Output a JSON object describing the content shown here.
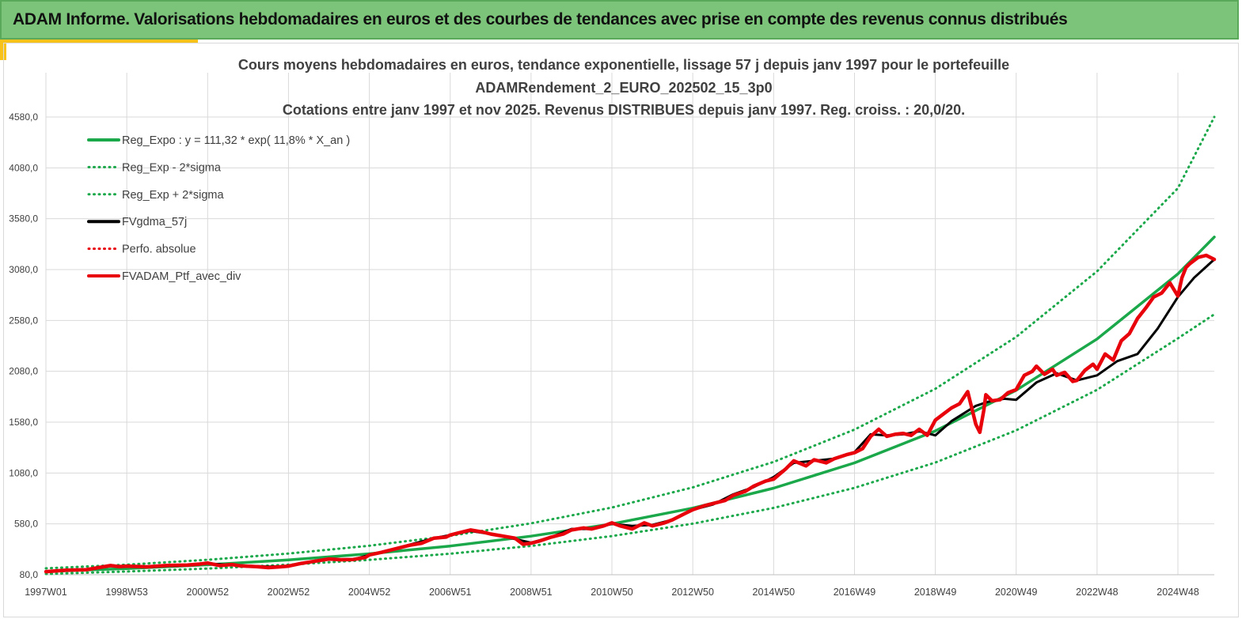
{
  "banner": {
    "title": "ADAM Informe. Valorisations hebdomadaires en euros et des courbes de tendances avec prise en compte des revenus connus distribués"
  },
  "colors": {
    "banner_bg": "#7cc47a",
    "accent": "#f7c21a",
    "trend": "#1aa84a",
    "gdma": "#000000",
    "portfolio": "#e8000b"
  },
  "chart_data": {
    "type": "line",
    "title_lines": [
      "Cours moyens hebdomadaires  en euros, tendance exponentielle, lissage 57 j depuis janv 1997 pour le portefeuille",
      "ADAMRendement_2_EURO_202502_15_3p0",
      "Cotations  entre janv 1997 et nov  2025. Revenus DISTRIBUES depuis janv 1997. Reg. croiss. : 20,0/20."
    ],
    "xlabel": "",
    "ylabel": "",
    "x_range": [
      1997.0,
      2025.9
    ],
    "ylim": [
      80,
      4580
    ],
    "y_ticks": [
      {
        "value": 80,
        "label": "80,0"
      },
      {
        "value": 580,
        "label": "580,0"
      },
      {
        "value": 1080,
        "label": "1080,0"
      },
      {
        "value": 1580,
        "label": "1580,0"
      },
      {
        "value": 2080,
        "label": "2080,0"
      },
      {
        "value": 2580,
        "label": "2580,0"
      },
      {
        "value": 3080,
        "label": "3080,0"
      },
      {
        "value": 3580,
        "label": "3580,0"
      },
      {
        "value": 4080,
        "label": "4080,0"
      },
      {
        "value": 4580,
        "label": "4580,0"
      }
    ],
    "x_ticks": [
      {
        "value": 1997.0,
        "label": "1997W01"
      },
      {
        "value": 1999.0,
        "label": "1998W53"
      },
      {
        "value": 2001.0,
        "label": "2000W52"
      },
      {
        "value": 2003.0,
        "label": "2002W52"
      },
      {
        "value": 2005.0,
        "label": "2004W52"
      },
      {
        "value": 2007.0,
        "label": "2006W51"
      },
      {
        "value": 2009.0,
        "label": "2008W51"
      },
      {
        "value": 2011.0,
        "label": "2010W50"
      },
      {
        "value": 2013.0,
        "label": "2012W50"
      },
      {
        "value": 2015.0,
        "label": "2014W50"
      },
      {
        "value": 2017.0,
        "label": "2016W49"
      },
      {
        "value": 2019.0,
        "label": "2018W49"
      },
      {
        "value": 2021.0,
        "label": "2020W49"
      },
      {
        "value": 2023.0,
        "label": "2022W48"
      },
      {
        "value": 2025.0,
        "label": "2024W48"
      }
    ],
    "grid": true,
    "legend_position": "top-left",
    "series": [
      {
        "name": "Reg_Expo : y = 111,32 * exp( 11,8% *  X_an )",
        "style": "solid",
        "color": "#1aa84a",
        "x": [
          1997,
          1999,
          2001,
          2003,
          2005,
          2007,
          2009,
          2011,
          2013,
          2015,
          2017,
          2019,
          2021,
          2023,
          2025,
          2025.9
        ],
        "y": [
          112,
          141,
          178,
          226,
          286,
          362,
          459,
          580,
          735,
          931,
          1180,
          1494,
          1893,
          2398,
          3037,
          3400
        ]
      },
      {
        "name": "Reg_Exp - 2*sigma",
        "style": "dotted",
        "color": "#1aa84a",
        "x": [
          1997,
          1999,
          2001,
          2003,
          2005,
          2007,
          2009,
          2011,
          2013,
          2015,
          2017,
          2019,
          2021,
          2023,
          2025,
          2025.9
        ],
        "y": [
          88,
          112,
          141,
          179,
          226,
          287,
          363,
          460,
          582,
          737,
          934,
          1183,
          1499,
          1898,
          2404,
          2640
        ]
      },
      {
        "name": "Reg_Exp + 2*sigma",
        "style": "dotted",
        "color": "#1aa84a",
        "x": [
          1997,
          1999,
          2001,
          2003,
          2005,
          2007,
          2009,
          2011,
          2013,
          2015,
          2017,
          2019,
          2021,
          2023,
          2025,
          2025.9
        ],
        "y": [
          143,
          179,
          227,
          288,
          365,
          462,
          585,
          741,
          939,
          1189,
          1507,
          1908,
          2418,
          3063,
          3880,
          4580
        ]
      },
      {
        "name": "FVgdma_57j",
        "style": "solid",
        "color": "#000000",
        "x": [
          1997.0,
          1998.0,
          1998.6,
          1999.5,
          2000.5,
          2001.0,
          2001.6,
          2002.5,
          2003.0,
          2003.6,
          2004.0,
          2004.6,
          2005.0,
          2005.6,
          2006.0,
          2006.6,
          2007.0,
          2007.5,
          2008.0,
          2008.5,
          2009.0,
          2009.5,
          2010.0,
          2010.5,
          2011.0,
          2011.5,
          2012.0,
          2012.5,
          2013.0,
          2013.5,
          2014.0,
          2014.5,
          2015.0,
          2015.5,
          2016.0,
          2016.5,
          2017.0,
          2017.4,
          2017.8,
          2018.2,
          2018.6,
          2019.0,
          2019.4,
          2019.8,
          2020.0,
          2020.3,
          2020.7,
          2021.0,
          2021.5,
          2022.0,
          2022.5,
          2023.0,
          2023.5,
          2024.0,
          2024.5,
          2025.0,
          2025.4,
          2025.9
        ],
        "y": [
          110,
          130,
          165,
          160,
          170,
          190,
          175,
          160,
          165,
          210,
          230,
          230,
          275,
          330,
          375,
          440,
          470,
          510,
          480,
          440,
          395,
          450,
          530,
          530,
          580,
          560,
          570,
          620,
          720,
          770,
          870,
          940,
          1040,
          1180,
          1200,
          1220,
          1285,
          1460,
          1450,
          1460,
          1490,
          1450,
          1590,
          1690,
          1740,
          1780,
          1810,
          1800,
          1970,
          2060,
          1990,
          2040,
          2180,
          2250,
          2500,
          2810,
          3000,
          3180
        ]
      },
      {
        "name": "Perfo. absolue",
        "style": "dotted",
        "color": "#e8000b",
        "x": [
          1997.0,
          1998.0,
          1998.6,
          1999.5,
          2000.5,
          2001.0,
          2001.6,
          2002.5,
          2003.0,
          2003.6,
          2004.0,
          2004.6,
          2005.0,
          2005.6,
          2006.0,
          2006.6,
          2007.0,
          2007.5,
          2008.0,
          2008.5,
          2009.0,
          2009.5,
          2010.0,
          2010.5,
          2011.0,
          2011.5,
          2012.0,
          2012.5,
          2013.0,
          2013.5,
          2014.0,
          2014.5,
          2015.0,
          2015.5,
          2016.0,
          2016.5,
          2017.0,
          2017.4,
          2017.8,
          2018.2,
          2018.6,
          2019.0,
          2019.4,
          2019.8,
          2020.0,
          2020.3,
          2020.7,
          2021.0,
          2021.5,
          2022.0,
          2022.5,
          2023.0,
          2023.5,
          2024.0,
          2024.5,
          2025.0,
          2025.4,
          2025.9
        ],
        "y": [
          110,
          130,
          165,
          160,
          170,
          190,
          175,
          160,
          165,
          210,
          230,
          230,
          275,
          330,
          375,
          440,
          470,
          510,
          480,
          440,
          395,
          450,
          530,
          530,
          580,
          560,
          570,
          620,
          720,
          770,
          870,
          940,
          1040,
          1180,
          1200,
          1220,
          1285,
          1460,
          1450,
          1460,
          1490,
          1450,
          1590,
          1690,
          1740,
          1780,
          1810,
          1800,
          1970,
          2060,
          1990,
          2040,
          2180,
          2250,
          2500,
          2810,
          3000,
          3180
        ]
      },
      {
        "name": "FVADAM_Ptf_avec_div",
        "style": "solid",
        "color": "#e8000b",
        "x": [
          1997.0,
          1997.5,
          1998.0,
          1998.3,
          1998.6,
          1998.8,
          1999.0,
          1999.5,
          2000.0,
          2000.5,
          2000.8,
          2001.0,
          2001.3,
          2001.6,
          2001.8,
          2002.2,
          2002.5,
          2002.8,
          2003.0,
          2003.3,
          2003.6,
          2004.0,
          2004.3,
          2004.6,
          2004.9,
          2005.0,
          2005.3,
          2005.6,
          2006.0,
          2006.3,
          2006.6,
          2006.9,
          2007.0,
          2007.2,
          2007.5,
          2007.8,
          2008.0,
          2008.3,
          2008.6,
          2008.8,
          2009.0,
          2009.2,
          2009.5,
          2009.8,
          2010.0,
          2010.3,
          2010.5,
          2010.8,
          2011.0,
          2011.2,
          2011.5,
          2011.8,
          2012.0,
          2012.3,
          2012.5,
          2012.8,
          2013.0,
          2013.3,
          2013.5,
          2013.8,
          2014.0,
          2014.3,
          2014.5,
          2014.8,
          2015.0,
          2015.3,
          2015.5,
          2015.8,
          2016.0,
          2016.3,
          2016.5,
          2016.8,
          2017.0,
          2017.2,
          2017.4,
          2017.6,
          2017.8,
          2018.0,
          2018.2,
          2018.4,
          2018.6,
          2018.8,
          2019.0,
          2019.2,
          2019.4,
          2019.6,
          2019.8,
          2020.0,
          2020.1,
          2020.2,
          2020.25,
          2020.4,
          2020.6,
          2020.8,
          2021.0,
          2021.2,
          2021.4,
          2021.5,
          2021.7,
          2021.9,
          2022.0,
          2022.2,
          2022.4,
          2022.5,
          2022.7,
          2022.9,
          2023.0,
          2023.2,
          2023.4,
          2023.6,
          2023.8,
          2024.0,
          2024.2,
          2024.4,
          2024.6,
          2024.8,
          2025.0,
          2025.1,
          2025.2,
          2025.3,
          2025.5,
          2025.7,
          2025.9
        ],
        "y": [
          110,
          125,
          130,
          150,
          170,
          160,
          165,
          158,
          172,
          175,
          185,
          195,
          170,
          180,
          168,
          160,
          150,
          158,
          165,
          190,
          210,
          235,
          228,
          230,
          250,
          275,
          300,
          330,
          370,
          390,
          440,
          450,
          470,
          490,
          520,
          500,
          480,
          460,
          440,
          380,
          390,
          410,
          450,
          480,
          520,
          540,
          530,
          560,
          590,
          560,
          530,
          590,
          560,
          590,
          620,
          680,
          720,
          760,
          780,
          810,
          860,
          900,
          950,
          1000,
          1020,
          1120,
          1200,
          1150,
          1210,
          1180,
          1220,
          1260,
          1280,
          1320,
          1440,
          1510,
          1440,
          1460,
          1470,
          1450,
          1510,
          1450,
          1600,
          1660,
          1720,
          1760,
          1880,
          1560,
          1480,
          1700,
          1850,
          1790,
          1800,
          1870,
          1900,
          2040,
          2080,
          2130,
          2050,
          2100,
          2040,
          2070,
          1980,
          1990,
          2090,
          2150,
          2100,
          2250,
          2190,
          2380,
          2450,
          2600,
          2700,
          2810,
          2850,
          2950,
          2820,
          3000,
          3100,
          3140,
          3200,
          3220,
          3180
        ]
      }
    ]
  }
}
